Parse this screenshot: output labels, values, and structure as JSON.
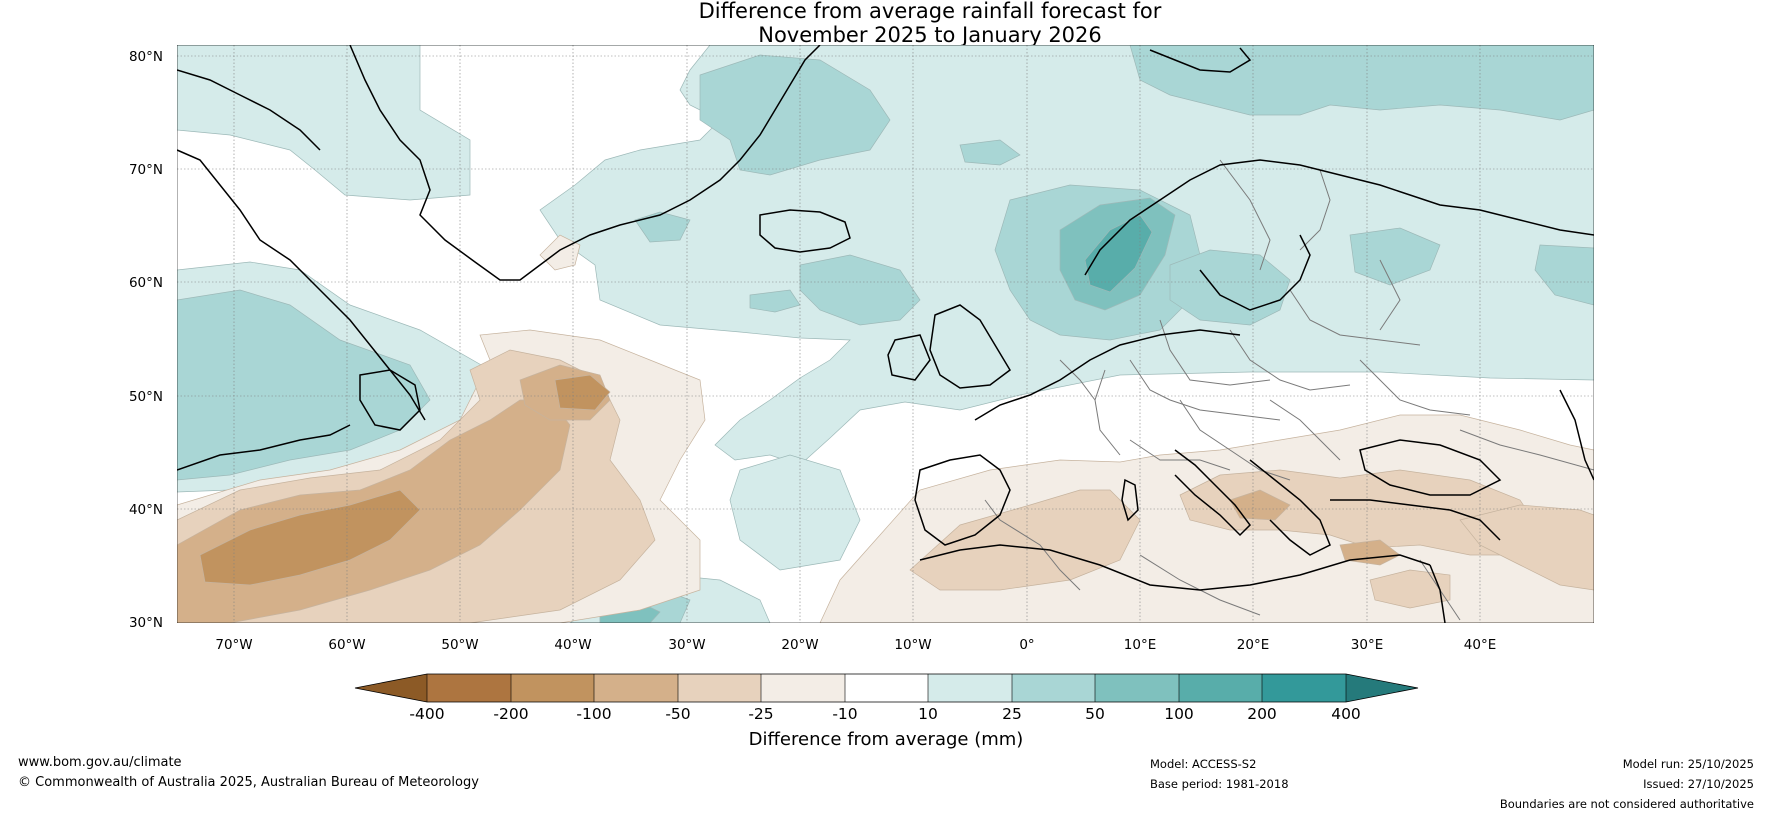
{
  "title": {
    "line1": "Difference from average rainfall forecast for",
    "line2": "November 2025 to January 2026"
  },
  "map": {
    "lat_ticks": [
      "80°N",
      "70°N",
      "60°N",
      "50°N",
      "40°N",
      "30°N"
    ],
    "lon_ticks": [
      "70°W",
      "60°W",
      "50°W",
      "40°W",
      "30°W",
      "20°W",
      "10°W",
      "0°",
      "10°E",
      "20°E",
      "30°E",
      "40°E"
    ],
    "extent": {
      "lon_min": -75,
      "lon_max": 50,
      "lat_min": 30,
      "lat_max": 81
    }
  },
  "colorbar": {
    "title": "Difference from average (mm)",
    "labels": [
      "-400",
      "-200",
      "-100",
      "-50",
      "-25",
      "-10",
      "10",
      "25",
      "50",
      "100",
      "200",
      "400"
    ],
    "colors": [
      "#8c5a26",
      "#ad7540",
      "#c1935f",
      "#d4b08a",
      "#e7d2bd",
      "#f3ede6",
      "#ffffff",
      "#d5ebea",
      "#a9d6d5",
      "#7fc1be",
      "#58adaa",
      "#33999a",
      "#257a7b"
    ]
  },
  "footer": {
    "website": "www.bom.gov.au/climate",
    "copyright": "© Commonwealth of Australia 2025, Australian Bureau of Meteorology",
    "model": "Model: ACCESS-S2",
    "base_period": "Base period: 1981-2018",
    "model_run": "Model run: 25/10/2025",
    "issued": "Issued: 27/10/2025",
    "disclaimer": "Boundaries are not considered authoritative"
  }
}
